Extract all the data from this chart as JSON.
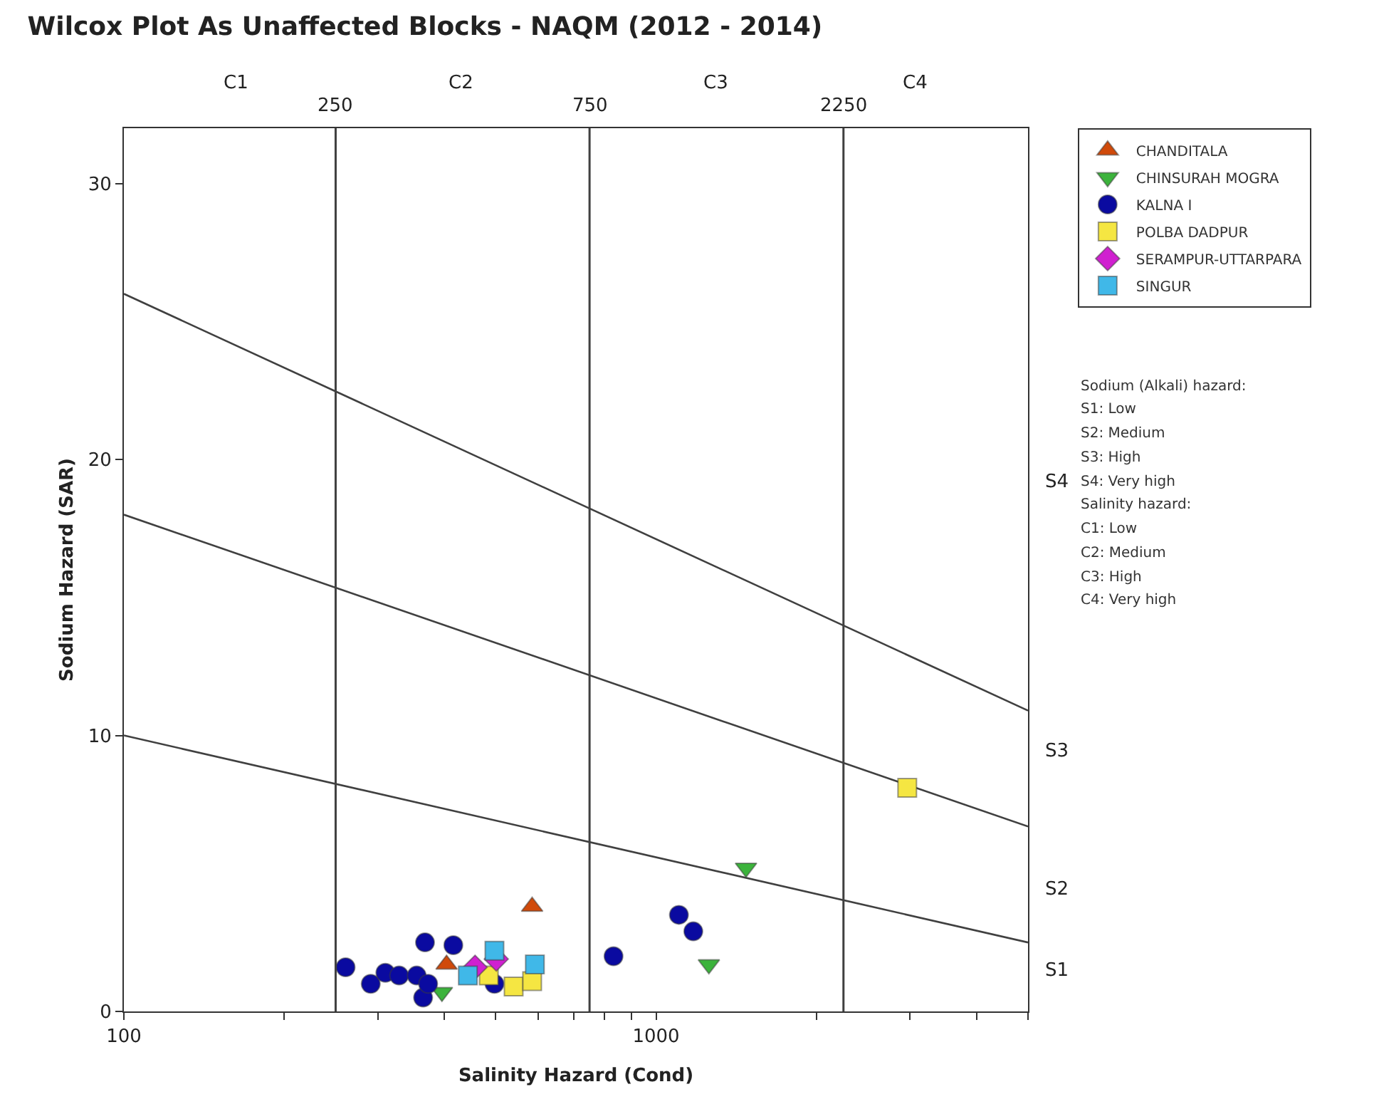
{
  "chart_data": {
    "type": "scatter",
    "title": "Wilcox Plot As Unaffected Blocks - NAQM (2012 - 2014)",
    "xlabel": "Salinity Hazard (Cond)",
    "ylabel": "Sodium Hazard (SAR)",
    "log": "x",
    "xlim": [
      100,
      5000
    ],
    "ylim": [
      0,
      32
    ],
    "xticks": [
      100,
      {
        "value": 200,
        "label": null
      },
      {
        "value": 300,
        "label": null
      },
      {
        "value": 400,
        "label": null
      },
      {
        "value": 500,
        "label": null
      },
      {
        "value": 600,
        "label": null
      },
      {
        "value": 700,
        "label": null
      },
      {
        "value": 800,
        "label": null
      },
      {
        "value": 900,
        "label": null
      },
      1000,
      {
        "value": 2000,
        "label": null
      },
      {
        "value": 3000,
        "label": null
      },
      {
        "value": 4000,
        "label": null
      },
      {
        "value": 5000,
        "label": null
      }
    ],
    "yticks": [
      0,
      10,
      20,
      30
    ],
    "grid": false,
    "legend": "top right",
    "ref_lines": [
      {
        "axis": "x",
        "value": 250,
        "label": "250",
        "color": "#404040"
      },
      {
        "axis": "x",
        "value": 750,
        "label": "750",
        "color": "#404040"
      },
      {
        "axis": "x",
        "value": 2250,
        "label": "2250",
        "color": "#404040"
      }
    ],
    "series": [
      {
        "type": "line",
        "color": "#404040",
        "x": [
          100,
          5000
        ],
        "values": [
          10,
          2.5
        ],
        "marker": "none"
      },
      {
        "type": "line",
        "color": "#404040",
        "x": [
          100,
          5000
        ],
        "values": [
          18,
          6.7
        ],
        "marker": "none"
      },
      {
        "type": "line",
        "color": "#404040",
        "x": [
          100,
          5000
        ],
        "values": [
          26,
          10.9
        ],
        "marker": "none"
      },
      {
        "name": "CHANDITALA",
        "color": "#d04a0a",
        "marker": "triangle",
        "x": [
          585,
          404
        ],
        "values": [
          3.8,
          1.7
        ]
      },
      {
        "name": "CHINSURAH MOGRA",
        "color": "#3cb33c",
        "marker": "triangle-down",
        "x": [
          1476,
          1257,
          396
        ],
        "values": [
          5.2,
          1.7,
          0.7
        ]
      },
      {
        "name": "KALNA I",
        "color": "#0a0aa0",
        "marker": "circle",
        "x": [
          261,
          291,
          310,
          329,
          355,
          368,
          416,
          365,
          373,
          497,
          832,
          1104,
          1175
        ],
        "values": [
          1.6,
          1.0,
          1.4,
          1.3,
          1.3,
          2.5,
          2.4,
          0.5,
          1.0,
          1.0,
          2.0,
          3.5,
          2.9
        ]
      },
      {
        "name": "POLBA DADPUR",
        "color": "#f5e642",
        "marker": "square",
        "x": [
          2965,
          485,
          540,
          585
        ],
        "values": [
          8.1,
          1.3,
          0.9,
          1.1
        ]
      },
      {
        "name": "SERAMPUR-UTTARPARA",
        "color": "#d020d0",
        "marker": "diamond",
        "x": [
          457,
          501
        ],
        "values": [
          1.6,
          1.9
        ]
      },
      {
        "name": "SINGUR",
        "color": "#40b8e8",
        "marker": "square",
        "x": [
          443,
          592,
          497
        ],
        "values": [
          1.3,
          1.7,
          2.2
        ]
      }
    ],
    "annotations": [
      "C1",
      "C2",
      "C3",
      "C4",
      "S1",
      "S2",
      "S3",
      "S4",
      "Sodium (Alkali) hazard:",
      "S1: Low",
      "S2: Medium",
      "S3: High",
      "S4: Very high",
      "Salinity hazard:",
      "C1: Low",
      "C2: Medium",
      "C3: High",
      "C4: Very high"
    ]
  }
}
